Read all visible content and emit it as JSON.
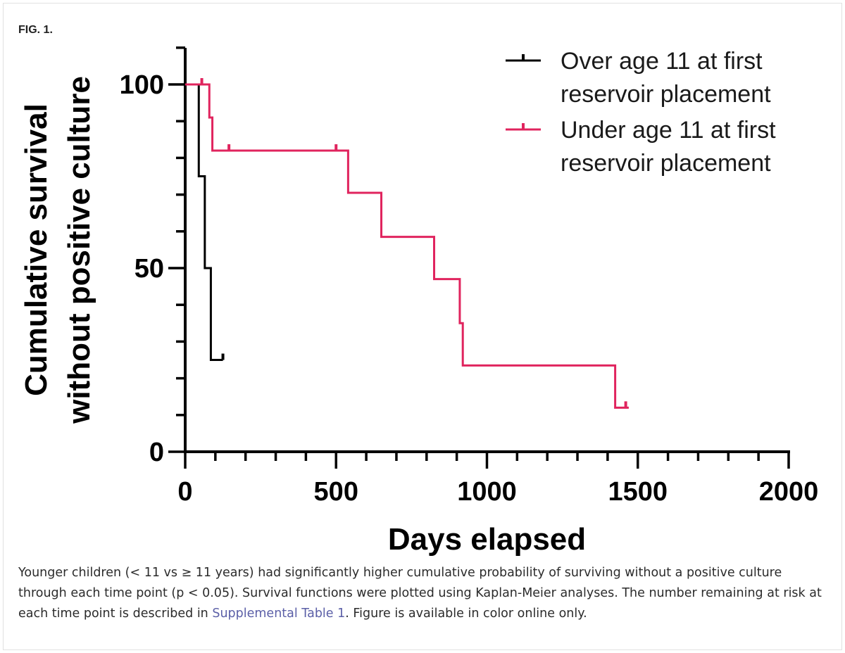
{
  "figure": {
    "label": "FIG. 1.",
    "caption_before_link": "Younger children (< 11 vs ≥ 11 years) had significantly higher cumulative probability of surviving without a positive culture through each time point (p < 0.05). Survival functions were plotted using Kaplan-Meier analyses. The number remaining at risk at each time point is described in ",
    "caption_link": "Supplemental Table 1",
    "caption_after_link": ". Figure is available in color online only."
  },
  "chart_data": {
    "type": "line",
    "step": "post",
    "xlabel": "Days elapsed",
    "ylabel_lines": [
      "Cumulative survival",
      "without positive culture"
    ],
    "xlim": [
      0,
      2000
    ],
    "ylim": [
      0,
      100
    ],
    "xticks": [
      0,
      500,
      1000,
      1500,
      2000
    ],
    "yticks": [
      0,
      50,
      100
    ],
    "x_minor_step": 100,
    "y_minor_step": 10,
    "grid": false,
    "legend_position": "top-right",
    "series": [
      {
        "name": "Over age 11 at first reservoir placement",
        "legend_lines": [
          "Over age 11 at first",
          "reservoir placement"
        ],
        "color": "#000000",
        "x": [
          0,
          45,
          65,
          85,
          125
        ],
        "y": [
          100,
          75,
          50,
          25,
          25
        ],
        "censored": [
          [
            125,
            25
          ]
        ]
      },
      {
        "name": "Under age 11 at first reservoir placement",
        "legend_lines": [
          "Under age 11 at first",
          "reservoir placement"
        ],
        "color": "#e0245e",
        "x": [
          0,
          80,
          90,
          540,
          650,
          825,
          910,
          920,
          1425,
          1470
        ],
        "y": [
          100,
          91,
          82,
          70.5,
          58.5,
          47,
          35,
          23.5,
          12,
          12
        ],
        "censored": [
          [
            55,
            100
          ],
          [
            145,
            82
          ],
          [
            500,
            82
          ],
          [
            1460,
            12
          ]
        ]
      }
    ]
  }
}
